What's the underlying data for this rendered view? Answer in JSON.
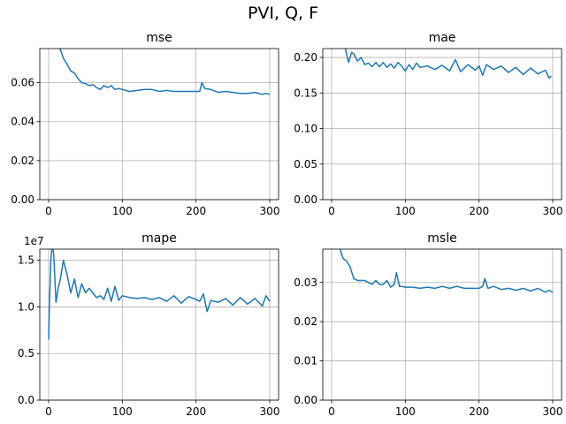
{
  "figure_title": "PVI, Q, F",
  "chart_data": [
    {
      "type": "line",
      "title": "mse",
      "xlabel": "",
      "ylabel": "",
      "xlim": [
        -12,
        312
      ],
      "ylim": [
        0,
        0.0775
      ],
      "xticks": [
        0,
        100,
        200,
        300
      ],
      "xtick_labels": [
        "0",
        "100",
        "200",
        "300"
      ],
      "yticks": [
        0,
        0.02,
        0.04,
        0.06
      ],
      "ytick_labels": [
        "0.00",
        "0.02",
        "0.04",
        "0.06"
      ],
      "grid": true,
      "series": [
        {
          "color": "#1f77b4",
          "x": [
            10,
            13,
            16,
            20,
            25,
            30,
            35,
            40,
            45,
            50,
            55,
            60,
            65,
            70,
            75,
            80,
            85,
            90,
            95,
            100,
            110,
            120,
            130,
            140,
            150,
            160,
            170,
            180,
            190,
            200,
            205,
            208,
            212,
            220,
            230,
            240,
            250,
            260,
            270,
            280,
            290,
            295,
            300
          ],
          "y": [
            0.082,
            0.078,
            0.077,
            0.0725,
            0.0695,
            0.066,
            0.065,
            0.062,
            0.06,
            0.0595,
            0.0585,
            0.059,
            0.0575,
            0.0565,
            0.0585,
            0.0575,
            0.0585,
            0.0565,
            0.057,
            0.0565,
            0.0555,
            0.056,
            0.0565,
            0.0565,
            0.0555,
            0.056,
            0.0555,
            0.0555,
            0.0555,
            0.0555,
            0.0555,
            0.06,
            0.057,
            0.0565,
            0.055,
            0.0555,
            0.055,
            0.0545,
            0.0545,
            0.055,
            0.054,
            0.0545,
            0.054
          ]
        }
      ]
    },
    {
      "type": "line",
      "title": "mae",
      "xlabel": "",
      "ylabel": "",
      "xlim": [
        -12,
        312
      ],
      "ylim": [
        0,
        0.2125
      ],
      "xticks": [
        0,
        100,
        200,
        300
      ],
      "xtick_labels": [
        "0",
        "100",
        "200",
        "300"
      ],
      "yticks": [
        0,
        0.05,
        0.1,
        0.15,
        0.2
      ],
      "ytick_labels": [
        "0.00",
        "0.05",
        "0.10",
        "0.15",
        "0.20"
      ],
      "grid": true,
      "series": [
        {
          "color": "#1f77b4",
          "x": [
            17,
            20,
            23,
            27,
            30,
            35,
            40,
            45,
            50,
            55,
            60,
            65,
            70,
            75,
            80,
            85,
            90,
            95,
            100,
            105,
            110,
            115,
            120,
            130,
            140,
            150,
            160,
            168,
            175,
            185,
            195,
            200,
            205,
            210,
            220,
            230,
            240,
            250,
            260,
            270,
            280,
            290,
            295,
            298
          ],
          "y": [
            0.225,
            0.205,
            0.193,
            0.207,
            0.205,
            0.195,
            0.2,
            0.19,
            0.192,
            0.187,
            0.193,
            0.187,
            0.193,
            0.186,
            0.191,
            0.185,
            0.193,
            0.188,
            0.181,
            0.19,
            0.183,
            0.192,
            0.186,
            0.188,
            0.183,
            0.189,
            0.181,
            0.197,
            0.18,
            0.19,
            0.182,
            0.188,
            0.175,
            0.19,
            0.183,
            0.188,
            0.179,
            0.186,
            0.176,
            0.185,
            0.177,
            0.182,
            0.171,
            0.174
          ]
        }
      ]
    },
    {
      "type": "line",
      "title": "mape",
      "xlabel": "",
      "ylabel": "",
      "axis_offset_label": "1e7",
      "xlim": [
        -12,
        312
      ],
      "ylim": [
        0,
        16200000
      ],
      "xticks": [
        0,
        100,
        200,
        300
      ],
      "xtick_labels": [
        "0",
        "100",
        "200",
        "300"
      ],
      "yticks": [
        0,
        5000000,
        10000000,
        15000000
      ],
      "ytick_labels": [
        "0.0",
        "0.5",
        "1.0",
        "1.5"
      ],
      "grid": true,
      "series": [
        {
          "color": "#1f77b4",
          "x": [
            0,
            1,
            2,
            3,
            5,
            7,
            10,
            13,
            16,
            20,
            25,
            30,
            35,
            40,
            45,
            50,
            55,
            60,
            65,
            70,
            75,
            80,
            85,
            90,
            95,
            100,
            110,
            120,
            130,
            140,
            150,
            160,
            170,
            180,
            190,
            200,
            205,
            210,
            215,
            220,
            230,
            240,
            250,
            260,
            270,
            280,
            290,
            295,
            300
          ],
          "y": [
            6500000,
            10000000,
            12500000,
            15000000,
            17000000,
            15500000,
            10500000,
            12000000,
            13000000,
            15000000,
            13500000,
            11500000,
            13000000,
            11000000,
            12500000,
            11500000,
            12000000,
            11500000,
            11000000,
            11200000,
            10800000,
            12000000,
            10600000,
            12200000,
            10700000,
            11200000,
            11000000,
            10900000,
            11000000,
            10800000,
            11000000,
            10600000,
            11200000,
            10400000,
            11100000,
            10800000,
            10600000,
            11400000,
            9500000,
            10700000,
            10500000,
            10900000,
            10200000,
            11000000,
            10300000,
            10900000,
            10100000,
            11200000,
            10600000
          ]
        }
      ]
    },
    {
      "type": "line",
      "title": "msle",
      "xlabel": "",
      "ylabel": "",
      "xlim": [
        -12,
        312
      ],
      "ylim": [
        0,
        0.0385
      ],
      "xticks": [
        0,
        100,
        200,
        300
      ],
      "xtick_labels": [
        "0",
        "100",
        "200",
        "300"
      ],
      "yticks": [
        0,
        0.01,
        0.02,
        0.03
      ],
      "ytick_labels": [
        "0.00",
        "0.01",
        "0.02",
        "0.03"
      ],
      "grid": true,
      "series": [
        {
          "color": "#1f77b4",
          "x": [
            10,
            13,
            16,
            20,
            25,
            30,
            35,
            40,
            45,
            50,
            55,
            60,
            65,
            70,
            75,
            80,
            85,
            88,
            92,
            95,
            100,
            110,
            120,
            130,
            140,
            150,
            160,
            170,
            180,
            190,
            200,
            205,
            208,
            212,
            220,
            230,
            240,
            250,
            260,
            270,
            280,
            290,
            295,
            300
          ],
          "y": [
            0.0395,
            0.0375,
            0.036,
            0.0355,
            0.034,
            0.031,
            0.0305,
            0.0305,
            0.0305,
            0.03,
            0.0295,
            0.0305,
            0.0295,
            0.0295,
            0.0305,
            0.0288,
            0.0295,
            0.0325,
            0.029,
            0.029,
            0.0288,
            0.0288,
            0.0285,
            0.0288,
            0.0285,
            0.029,
            0.0285,
            0.029,
            0.0285,
            0.0285,
            0.0285,
            0.029,
            0.031,
            0.0285,
            0.029,
            0.0282,
            0.0285,
            0.028,
            0.0285,
            0.0278,
            0.0285,
            0.0275,
            0.028,
            0.0275
          ]
        }
      ]
    }
  ]
}
